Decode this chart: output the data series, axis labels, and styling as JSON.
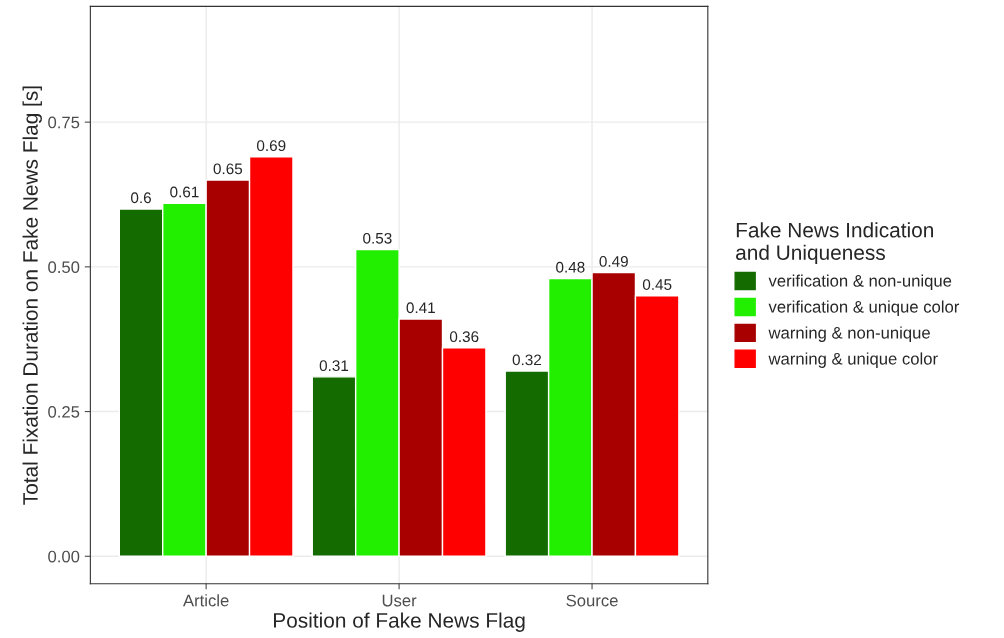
{
  "chart_data": {
    "type": "bar",
    "xlabel": "Position of Fake News Flag",
    "ylabel": "Total Fixation Duration on Fake News Flag [s]",
    "legend_title": "Fake News Indication\nand Uniqueness",
    "categories": [
      "Article",
      "User",
      "Source"
    ],
    "series": [
      {
        "name": "verification & non-unique",
        "color": "#146c00",
        "values": [
          0.6,
          0.31,
          0.32
        ]
      },
      {
        "name": "verification & unique color",
        "color": "#22ee00",
        "values": [
          0.61,
          0.53,
          0.48
        ]
      },
      {
        "name": "warning & non-unique",
        "color": "#a80000",
        "values": [
          0.65,
          0.41,
          0.49
        ]
      },
      {
        "name": "warning & unique color",
        "color": "#ff0000",
        "values": [
          0.69,
          0.36,
          0.45
        ]
      }
    ],
    "ylim": [
      -0.0475,
      0.95
    ],
    "yticks": [
      {
        "value": 0,
        "label": "0.00"
      },
      {
        "value": 0.25,
        "label": "0.25"
      },
      {
        "value": 0.5,
        "label": "0.50"
      },
      {
        "value": 0.75,
        "label": "0.75"
      }
    ],
    "grid": true,
    "legend": "right",
    "data_labels": true
  }
}
